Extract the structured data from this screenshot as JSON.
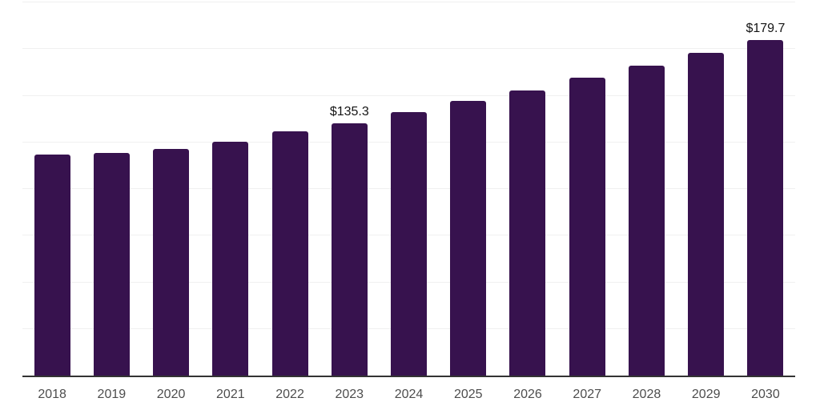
{
  "chart_data": {
    "type": "bar",
    "title": "",
    "xlabel": "",
    "ylabel": "",
    "categories": [
      "2018",
      "2019",
      "2020",
      "2021",
      "2022",
      "2023",
      "2024",
      "2025",
      "2026",
      "2027",
      "2028",
      "2029",
      "2030"
    ],
    "values": [
      118.3,
      119.3,
      121.4,
      125.4,
      130.7,
      135.3,
      141.4,
      147.1,
      153.0,
      159.5,
      166.0,
      173.1,
      179.7
    ],
    "point_labels": [
      "",
      "",
      "",
      "",
      "",
      "$135.3",
      "",
      "",
      "",
      "",
      "",
      "",
      "$179.7"
    ],
    "ylim": [
      0,
      200
    ],
    "gridline_step": 25,
    "grid": "horizontal",
    "legend_position": "none",
    "y_axis_labels_visible": false
  },
  "colors": {
    "bar": "#37124E",
    "gridline": "#F0F0F0",
    "axis_line": "#333333",
    "tick_label": "#4D4D4D",
    "data_label": "#141414",
    "background": "#FFFFFF"
  }
}
